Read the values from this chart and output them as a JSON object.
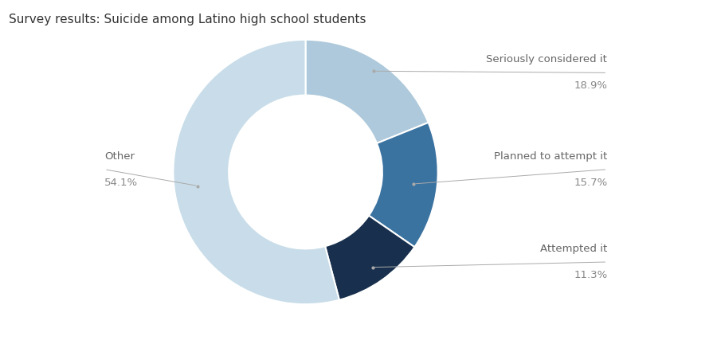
{
  "title": "Survey results: Suicide among Latino high school students",
  "slices": [
    {
      "label": "Seriously considered it",
      "value": 18.9,
      "color": "#aec9db"
    },
    {
      "label": "Planned to attempt it",
      "value": 15.7,
      "color": "#3a72a0"
    },
    {
      "label": "Attempted it",
      "value": 11.3,
      "color": "#18304d"
    },
    {
      "label": "Other",
      "value": 54.1,
      "color": "#c8dde9"
    }
  ],
  "background_color": "#ffffff",
  "title_fontsize": 11,
  "label_fontsize": 9.5,
  "pct_fontsize": 9.5,
  "label_color": "#666666",
  "pct_color": "#888888",
  "line_color": "#aaaaaa",
  "wedge_edge_color": "#ffffff",
  "startangle": 90,
  "donut_width": 0.42
}
